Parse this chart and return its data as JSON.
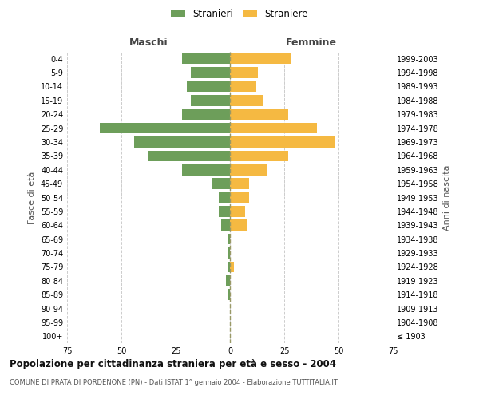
{
  "age_groups": [
    "100+",
    "95-99",
    "90-94",
    "85-89",
    "80-84",
    "75-79",
    "70-74",
    "65-69",
    "60-64",
    "55-59",
    "50-54",
    "45-49",
    "40-44",
    "35-39",
    "30-34",
    "25-29",
    "20-24",
    "15-19",
    "10-14",
    "5-9",
    "0-4"
  ],
  "birth_years": [
    "≤ 1903",
    "1904-1908",
    "1909-1913",
    "1914-1918",
    "1919-1923",
    "1924-1928",
    "1929-1933",
    "1934-1938",
    "1939-1943",
    "1944-1948",
    "1949-1953",
    "1954-1958",
    "1959-1963",
    "1964-1968",
    "1969-1973",
    "1974-1978",
    "1979-1983",
    "1984-1988",
    "1989-1993",
    "1994-1998",
    "1999-2003"
  ],
  "maschi": [
    0,
    0,
    0,
    1,
    2,
    1,
    1,
    1,
    4,
    5,
    5,
    8,
    22,
    38,
    44,
    60,
    22,
    18,
    20,
    18,
    22
  ],
  "femmine": [
    0,
    0,
    0,
    0,
    0,
    2,
    0,
    0,
    8,
    7,
    9,
    9,
    17,
    27,
    48,
    40,
    27,
    15,
    12,
    13,
    28
  ],
  "male_color": "#6d9e5a",
  "female_color": "#f5b942",
  "center_line_color": "#999966",
  "grid_color": "#cccccc",
  "background_color": "#ffffff",
  "xlim": 75,
  "title": "Popolazione per cittadinanza straniera per età e sesso - 2004",
  "subtitle": "COMUNE DI PRATA DI PORDENONE (PN) - Dati ISTAT 1° gennaio 2004 - Elaborazione TUTTITALIA.IT",
  "ylabel_left": "Fasce di età",
  "ylabel_right": "Anni di nascita",
  "xlabel_maschi": "Maschi",
  "xlabel_femmine": "Femmine",
  "legend_stranieri": "Stranieri",
  "legend_straniere": "Straniere"
}
